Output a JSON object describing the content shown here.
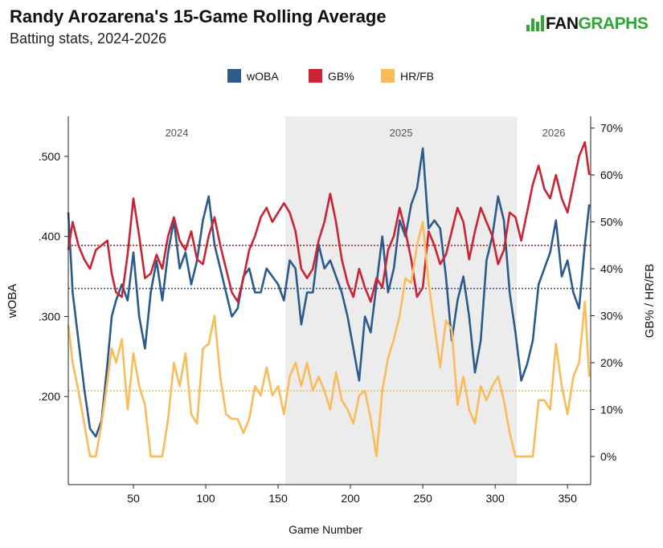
{
  "header": {
    "title": "Randy Arozarena's 15-Game Rolling Average",
    "subtitle": "Batting stats, 2024-2026",
    "logo_left": "FAN",
    "logo_right": "GRAPHS"
  },
  "chart_data": {
    "type": "line",
    "xlabel": "Game Number",
    "ylabel_left": "wOBA",
    "ylabel_right": "GB% / HR/FB",
    "xlim": [
      5,
      366
    ],
    "ylim_left": [
      0.09,
      0.55
    ],
    "ylim_right": [
      -0.06,
      0.725
    ],
    "x_ticks": [
      50,
      100,
      150,
      200,
      250,
      300,
      350
    ],
    "y_ticks_left": [
      ".200",
      ".300",
      ".400",
      ".500"
    ],
    "y_tick_values_left": [
      0.2,
      0.3,
      0.4,
      0.5
    ],
    "y_ticks_right": [
      "0%",
      "10%",
      "20%",
      "30%",
      "40%",
      "50%",
      "60%",
      "70%"
    ],
    "y_tick_values_right": [
      0,
      0.1,
      0.2,
      0.3,
      0.4,
      0.5,
      0.6,
      0.7
    ],
    "grid": false,
    "legend_position": "top",
    "seasons": [
      {
        "label": "2024",
        "x_start": 5,
        "x_end": 155,
        "shaded": false
      },
      {
        "label": "2025",
        "x_start": 155,
        "x_end": 315,
        "shaded": true
      },
      {
        "label": "2026",
        "x_start": 315,
        "x_end": 366,
        "shaded": false
      }
    ],
    "reference_lines": [
      {
        "series": "wOBA",
        "axis": "left",
        "value": 0.335
      },
      {
        "series": "GB%",
        "axis": "right",
        "value": 0.45
      },
      {
        "series": "HR/FB",
        "axis": "right",
        "value": 0.14
      }
    ],
    "series": [
      {
        "name": "wOBA",
        "axis": "left",
        "color": "#2d5a8c",
        "x": [
          5,
          8,
          12,
          16,
          20,
          24,
          28,
          32,
          35,
          38,
          42,
          46,
          50,
          54,
          58,
          62,
          66,
          70,
          74,
          78,
          82,
          86,
          90,
          94,
          98,
          102,
          106,
          110,
          114,
          118,
          122,
          126,
          130,
          134,
          138,
          142,
          146,
          150,
          154,
          158,
          162,
          166,
          170,
          174,
          178,
          182,
          186,
          190,
          194,
          198,
          202,
          206,
          210,
          214,
          218,
          222,
          226,
          230,
          234,
          238,
          242,
          246,
          250,
          254,
          258,
          262,
          266,
          270,
          274,
          278,
          282,
          286,
          290,
          294,
          298,
          302,
          306,
          310,
          314,
          318,
          322,
          326,
          330,
          334,
          338,
          342,
          346,
          350,
          354,
          358,
          362,
          365
        ],
        "values": [
          0.43,
          0.33,
          0.27,
          0.21,
          0.16,
          0.15,
          0.17,
          0.24,
          0.3,
          0.32,
          0.34,
          0.32,
          0.38,
          0.3,
          0.26,
          0.33,
          0.37,
          0.32,
          0.38,
          0.42,
          0.36,
          0.38,
          0.34,
          0.37,
          0.42,
          0.45,
          0.39,
          0.36,
          0.33,
          0.3,
          0.31,
          0.35,
          0.36,
          0.33,
          0.33,
          0.36,
          0.35,
          0.34,
          0.32,
          0.37,
          0.36,
          0.29,
          0.33,
          0.33,
          0.39,
          0.36,
          0.37,
          0.35,
          0.33,
          0.3,
          0.26,
          0.22,
          0.3,
          0.28,
          0.34,
          0.4,
          0.33,
          0.36,
          0.42,
          0.4,
          0.44,
          0.46,
          0.51,
          0.41,
          0.42,
          0.41,
          0.35,
          0.27,
          0.32,
          0.35,
          0.3,
          0.23,
          0.27,
          0.37,
          0.4,
          0.45,
          0.42,
          0.33,
          0.28,
          0.22,
          0.24,
          0.27,
          0.34,
          0.36,
          0.38,
          0.42,
          0.35,
          0.37,
          0.33,
          0.31,
          0.39,
          0.44
        ]
      },
      {
        "name": "GB%",
        "axis": "right",
        "color": "#cc2233",
        "x": [
          5,
          8,
          12,
          16,
          20,
          24,
          28,
          32,
          35,
          38,
          42,
          46,
          50,
          54,
          58,
          62,
          66,
          70,
          74,
          78,
          82,
          86,
          90,
          94,
          98,
          102,
          106,
          110,
          114,
          118,
          122,
          126,
          130,
          134,
          138,
          142,
          146,
          150,
          154,
          158,
          162,
          166,
          170,
          174,
          178,
          182,
          186,
          190,
          194,
          198,
          202,
          206,
          210,
          214,
          218,
          222,
          226,
          230,
          234,
          238,
          242,
          246,
          250,
          254,
          258,
          262,
          266,
          270,
          274,
          278,
          282,
          286,
          290,
          294,
          298,
          302,
          306,
          310,
          314,
          318,
          322,
          326,
          330,
          334,
          338,
          342,
          346,
          350,
          354,
          358,
          362,
          365
        ],
        "values": [
          0.44,
          0.5,
          0.45,
          0.42,
          0.4,
          0.44,
          0.45,
          0.46,
          0.39,
          0.35,
          0.34,
          0.43,
          0.55,
          0.47,
          0.38,
          0.39,
          0.43,
          0.4,
          0.47,
          0.51,
          0.46,
          0.44,
          0.48,
          0.42,
          0.41,
          0.47,
          0.51,
          0.45,
          0.4,
          0.35,
          0.33,
          0.38,
          0.44,
          0.47,
          0.51,
          0.53,
          0.5,
          0.52,
          0.54,
          0.52,
          0.48,
          0.4,
          0.38,
          0.4,
          0.46,
          0.5,
          0.56,
          0.5,
          0.42,
          0.37,
          0.34,
          0.4,
          0.36,
          0.33,
          0.38,
          0.36,
          0.44,
          0.47,
          0.53,
          0.48,
          0.42,
          0.34,
          0.36,
          0.48,
          0.45,
          0.41,
          0.43,
          0.48,
          0.53,
          0.5,
          0.42,
          0.48,
          0.53,
          0.5,
          0.47,
          0.41,
          0.44,
          0.52,
          0.51,
          0.46,
          0.52,
          0.58,
          0.62,
          0.57,
          0.55,
          0.6,
          0.55,
          0.52,
          0.58,
          0.64,
          0.67,
          0.6
        ]
      },
      {
        "name": "HR/FB",
        "axis": "right",
        "color": "#fbbb58",
        "x": [
          5,
          8,
          12,
          16,
          20,
          24,
          28,
          32,
          35,
          38,
          42,
          46,
          50,
          54,
          58,
          62,
          66,
          70,
          74,
          78,
          82,
          86,
          90,
          94,
          98,
          102,
          106,
          110,
          114,
          118,
          122,
          126,
          130,
          134,
          138,
          142,
          146,
          150,
          154,
          158,
          162,
          166,
          170,
          174,
          178,
          182,
          186,
          190,
          194,
          198,
          202,
          206,
          210,
          214,
          218,
          222,
          226,
          230,
          234,
          238,
          242,
          246,
          250,
          254,
          258,
          262,
          266,
          270,
          274,
          278,
          282,
          286,
          290,
          294,
          298,
          302,
          306,
          310,
          314,
          318,
          322,
          326,
          330,
          334,
          338,
          342,
          346,
          350,
          354,
          358,
          362,
          365
        ],
        "values": [
          0.28,
          0.2,
          0.14,
          0.07,
          0.0,
          0.0,
          0.07,
          0.16,
          0.23,
          0.2,
          0.25,
          0.1,
          0.22,
          0.15,
          0.11,
          0.0,
          0.0,
          0.0,
          0.08,
          0.2,
          0.15,
          0.22,
          0.09,
          0.07,
          0.23,
          0.24,
          0.3,
          0.17,
          0.09,
          0.08,
          0.08,
          0.05,
          0.08,
          0.15,
          0.13,
          0.19,
          0.13,
          0.15,
          0.09,
          0.17,
          0.2,
          0.15,
          0.2,
          0.14,
          0.17,
          0.14,
          0.1,
          0.18,
          0.12,
          0.1,
          0.07,
          0.13,
          0.14,
          0.08,
          0.0,
          0.14,
          0.21,
          0.25,
          0.3,
          0.38,
          0.37,
          0.45,
          0.5,
          0.37,
          0.28,
          0.19,
          0.29,
          0.27,
          0.11,
          0.17,
          0.1,
          0.07,
          0.15,
          0.12,
          0.15,
          0.17,
          0.12,
          0.05,
          0.0,
          0.0,
          0.0,
          0.0,
          0.12,
          0.12,
          0.1,
          0.24,
          0.15,
          0.09,
          0.17,
          0.2,
          0.33,
          0.17
        ]
      }
    ]
  }
}
